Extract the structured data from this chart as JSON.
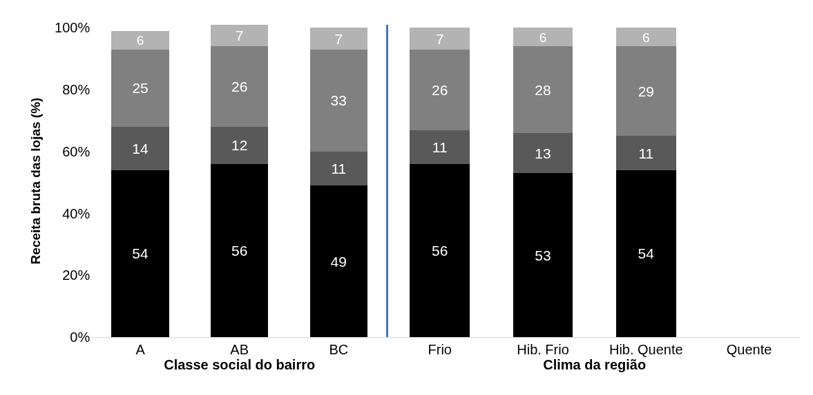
{
  "chart_data": [
    {
      "type": "bar",
      "stacked": true,
      "ylabel": "Receita bruta das lojas (%)",
      "xlabel": "Classe social do bairro",
      "categories": [
        "A",
        "AB",
        "BC"
      ],
      "ylim": [
        0,
        101
      ],
      "yticks": [
        {
          "value": 0,
          "label": "0%"
        },
        {
          "value": 20,
          "label": "20%"
        },
        {
          "value": 40,
          "label": "40%"
        },
        {
          "value": 60,
          "label": "60%"
        },
        {
          "value": 80,
          "label": "80%"
        },
        {
          "value": 100,
          "label": "100%"
        }
      ],
      "data_labels": true,
      "series": [
        {
          "color": "#000000",
          "values": [
            54,
            56,
            49
          ]
        },
        {
          "color": "#595959",
          "values": [
            14,
            12,
            11
          ]
        },
        {
          "color": "#808080",
          "values": [
            25,
            26,
            33
          ]
        },
        {
          "color": "#b3b3b3",
          "values": [
            6,
            7,
            7
          ]
        }
      ]
    },
    {
      "type": "bar",
      "stacked": true,
      "xlabel": "Clima da região",
      "categories": [
        "Frio",
        "Hib. Frio",
        "Hib. Quente",
        "Quente"
      ],
      "ylim": [
        0,
        101
      ],
      "tick_labels": "x",
      "data_labels": true,
      "series": [
        {
          "color": "#000000",
          "values": [
            56,
            53,
            54,
            null
          ]
        },
        {
          "color": "#595959",
          "values": [
            11,
            13,
            11,
            null
          ]
        },
        {
          "color": "#808080",
          "values": [
            26,
            28,
            29,
            null
          ]
        },
        {
          "color": "#b3b3b3",
          "values": [
            7,
            6,
            6,
            null
          ]
        }
      ]
    }
  ]
}
